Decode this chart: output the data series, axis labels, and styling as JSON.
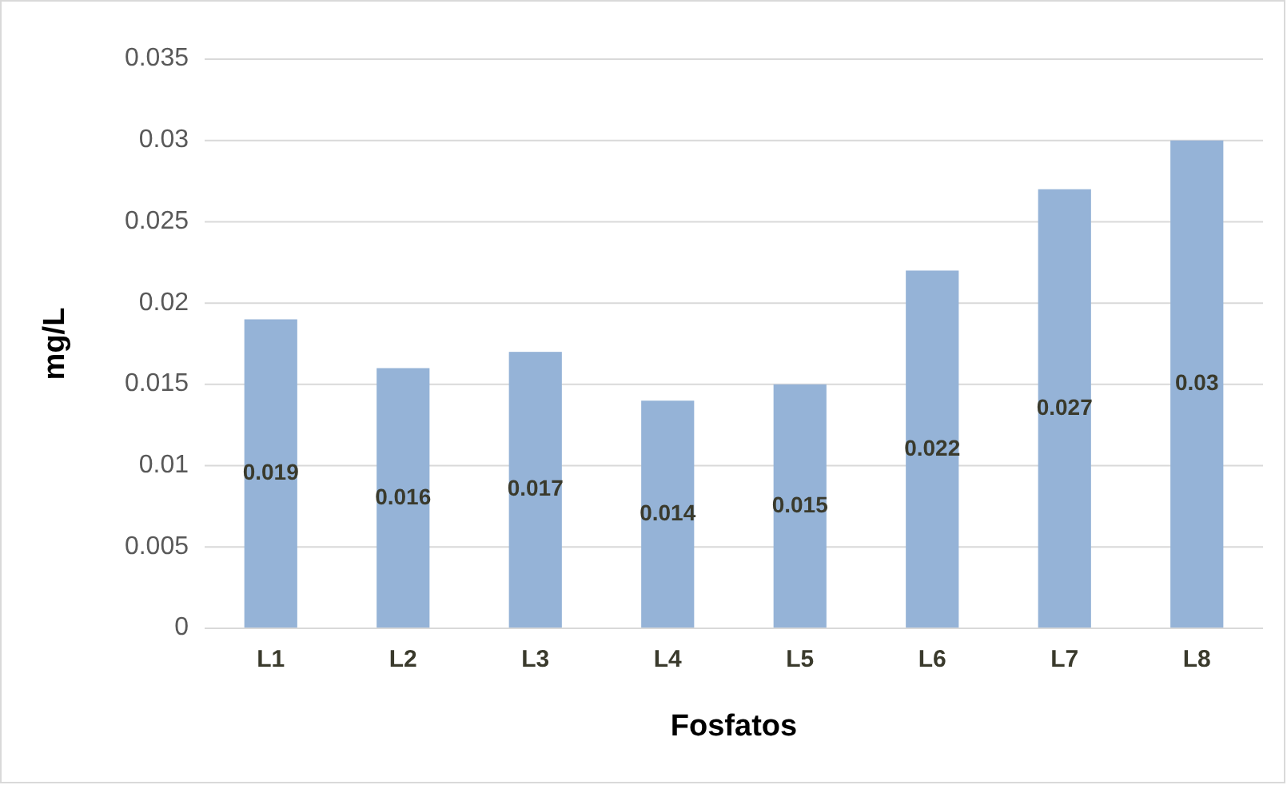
{
  "chart_data": {
    "type": "bar",
    "xlabel": "Fosfatos",
    "ylabel": "mg/L",
    "categories": [
      "L1",
      "L2",
      "L3",
      "L4",
      "L5",
      "L6",
      "L7",
      "L8"
    ],
    "values": [
      0.019,
      0.016,
      0.017,
      0.014,
      0.015,
      0.022,
      0.027,
      0.03
    ],
    "color": "#95b3d7",
    "ylim": [
      0,
      0.035
    ],
    "yticks": [
      0,
      0.005,
      0.01,
      0.015,
      0.02,
      0.025,
      0.03,
      0.035
    ],
    "grid": "y",
    "data_labels": true
  }
}
